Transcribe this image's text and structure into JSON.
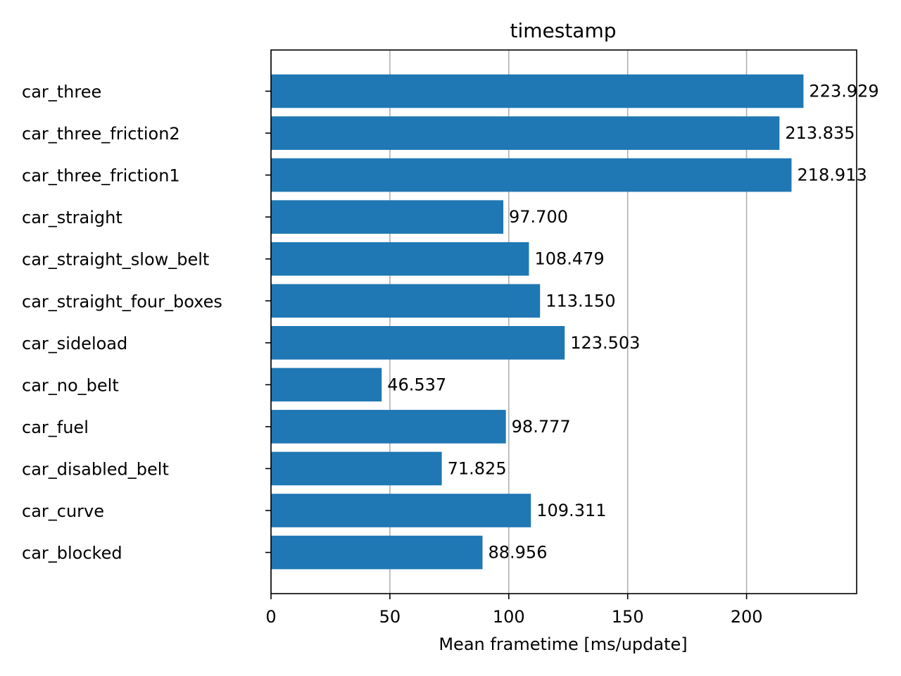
{
  "chart_data": {
    "type": "bar",
    "orientation": "horizontal",
    "title": "timestamp",
    "xlabel": "Mean frametime [ms/update]",
    "ylabel": "",
    "categories": [
      "car_three",
      "car_three_friction2",
      "car_three_friction1",
      "car_straight",
      "car_straight_slow_belt",
      "car_straight_four_boxes",
      "car_sideload",
      "car_no_belt",
      "car_fuel",
      "car_disabled_belt",
      "car_curve",
      "car_blocked"
    ],
    "values": [
      223.929,
      213.835,
      218.913,
      97.7,
      108.479,
      113.15,
      123.503,
      46.537,
      98.777,
      71.825,
      109.311,
      88.956
    ],
    "value_labels": [
      "223.929",
      "213.835",
      "218.913",
      "97.700",
      "108.479",
      "113.150",
      "123.503",
      "46.537",
      "98.777",
      "71.825",
      "109.311",
      "88.956"
    ],
    "xlim": [
      0,
      246.3
    ],
    "xticks": [
      0,
      50,
      100,
      150,
      200
    ],
    "xtick_labels": [
      "0",
      "50",
      "100",
      "150",
      "200"
    ],
    "grid": "x-axis vertical gridlines",
    "bar_color": "#1f77b4",
    "grid_color": "#b0b0b0"
  }
}
